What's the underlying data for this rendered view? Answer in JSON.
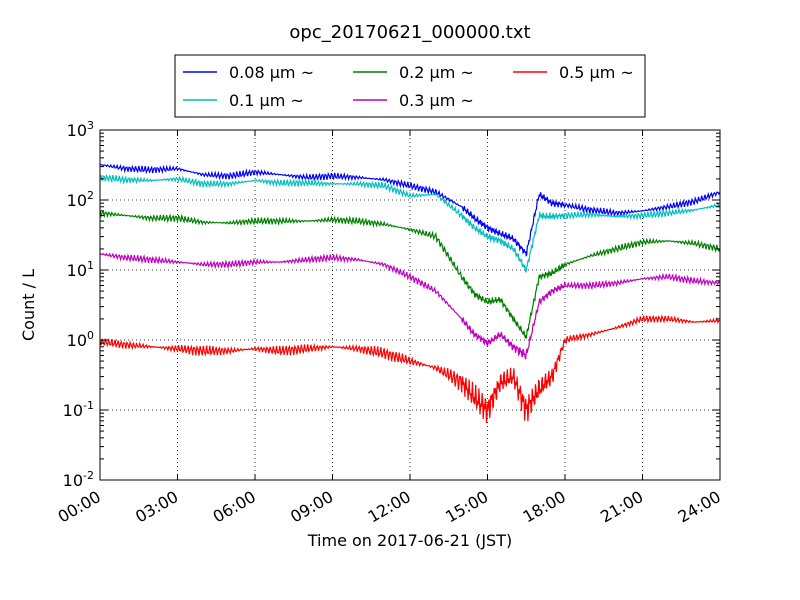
{
  "chart_data": {
    "type": "line",
    "title": "opc_20170621_000000.txt",
    "xlabel": "Time on 2017-06-21 (JST)",
    "ylabel": "Count / L",
    "yscale": "log",
    "ylim": [
      0.01,
      1000
    ],
    "xlim": [
      "00:00",
      "24:00"
    ],
    "x_ticks": [
      "00:00",
      "03:00",
      "06:00",
      "09:00",
      "12:00",
      "15:00",
      "18:00",
      "21:00",
      "24:00"
    ],
    "y_ticks": [
      {
        "base": "10",
        "exp": "-2"
      },
      {
        "base": "10",
        "exp": "-1"
      },
      {
        "base": "10",
        "exp": "0"
      },
      {
        "base": "10",
        "exp": "1"
      },
      {
        "base": "10",
        "exp": "2"
      },
      {
        "base": "10",
        "exp": "3"
      }
    ],
    "grid": true,
    "legend_position": "top",
    "x": [
      "00:00",
      "01:00",
      "02:00",
      "03:00",
      "04:00",
      "05:00",
      "06:00",
      "07:00",
      "08:00",
      "09:00",
      "10:00",
      "11:00",
      "12:00",
      "13:00",
      "14:00",
      "14:30",
      "15:00",
      "15:30",
      "16:00",
      "16:30",
      "17:00",
      "17:30",
      "18:00",
      "19:00",
      "20:00",
      "21:00",
      "22:00",
      "23:00",
      "24:00"
    ],
    "series": [
      {
        "name": "0.08 μm ~",
        "color": "#0000ff",
        "values": [
          320,
          280,
          270,
          280,
          230,
          220,
          250,
          230,
          210,
          220,
          210,
          195,
          160,
          130,
          80,
          55,
          40,
          33,
          28,
          17,
          120,
          90,
          85,
          72,
          65,
          70,
          80,
          95,
          130
        ]
      },
      {
        "name": "0.1 μm ~",
        "color": "#00bfbf",
        "values": [
          210,
          195,
          190,
          200,
          170,
          170,
          190,
          175,
          175,
          170,
          170,
          160,
          115,
          120,
          60,
          40,
          30,
          26,
          20,
          10,
          60,
          58,
          60,
          62,
          58,
          60,
          65,
          72,
          85
        ]
      },
      {
        "name": "0.2 μm ~",
        "color": "#008000",
        "values": [
          65,
          60,
          55,
          55,
          48,
          47,
          50,
          50,
          50,
          52,
          50,
          45,
          38,
          30,
          8,
          4.5,
          3.5,
          3.8,
          2.0,
          1.1,
          8,
          9,
          12,
          16,
          20,
          25,
          26,
          24,
          20
        ]
      },
      {
        "name": "0.3 μm ~",
        "color": "#bf00bf",
        "values": [
          17,
          15,
          14,
          13,
          12,
          12,
          13,
          13,
          14,
          15,
          14,
          12,
          8,
          5,
          2,
          1.2,
          0.9,
          1.2,
          0.8,
          0.6,
          3.5,
          5,
          6,
          6,
          6.5,
          7.5,
          8,
          7,
          6.5
        ]
      },
      {
        "name": "0.5 μm ~",
        "color": "#ff0000",
        "values": [
          0.95,
          0.85,
          0.8,
          0.75,
          0.7,
          0.7,
          0.75,
          0.7,
          0.75,
          0.8,
          0.75,
          0.65,
          0.5,
          0.4,
          0.25,
          0.15,
          0.1,
          0.25,
          0.3,
          0.1,
          0.2,
          0.3,
          1.0,
          1.2,
          1.5,
          2.0,
          2.0,
          1.8,
          1.9
        ]
      }
    ]
  }
}
